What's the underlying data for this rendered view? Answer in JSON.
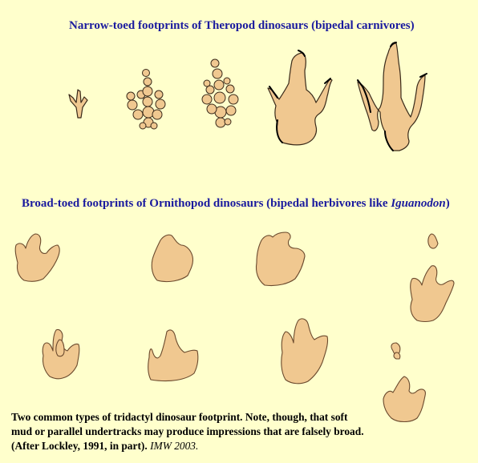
{
  "headings": {
    "theropod": "Narrow-toed footprints of Theropod dinosaurs (bipedal carnivores)",
    "ornithopod_pre": "Broad-toed footprints of Ornithopod dinosaurs (bipedal herbivores like ",
    "ornithopod_italic": "Iguanodon",
    "ornithopod_post": ")"
  },
  "caption": {
    "text": "Two common types of tridactyl dinosaur footprint. Note, though, that soft mud or parallel undertracks may produce impressions that are falsely broad. (After Lockley, 1991, in part). ",
    "credit": "IMW 2003."
  },
  "colors": {
    "background": "#ffffcc",
    "heading": "#1a1a9e",
    "footprint_fill": "#f0c890"
  }
}
